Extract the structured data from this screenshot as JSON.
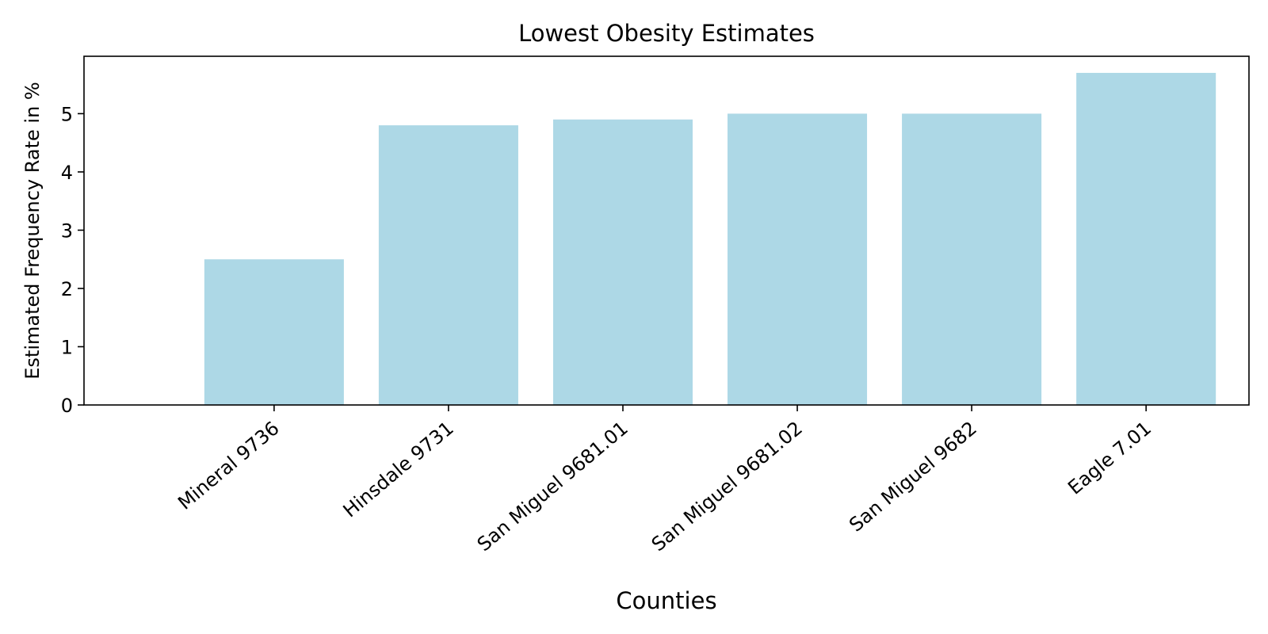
{
  "chart_data": {
    "type": "bar",
    "title": "Lowest Obesity Estimates",
    "xlabel": "Counties",
    "ylabel": "Estimated Frequency Rate in %",
    "categories": [
      "Mineral 9736",
      "Hinsdale 9731",
      "San Miguel 9681.01",
      "San Miguel 9681.02",
      "San Miguel 9682",
      "Eagle 7.01"
    ],
    "values": [
      2.5,
      4.8,
      4.9,
      5.0,
      5.0,
      5.7
    ],
    "ylim": [
      0,
      5.985
    ],
    "yticks": [
      0,
      1,
      2,
      3,
      4,
      5
    ],
    "bar_color": "#add8e6",
    "grid": false,
    "legend": "none"
  }
}
